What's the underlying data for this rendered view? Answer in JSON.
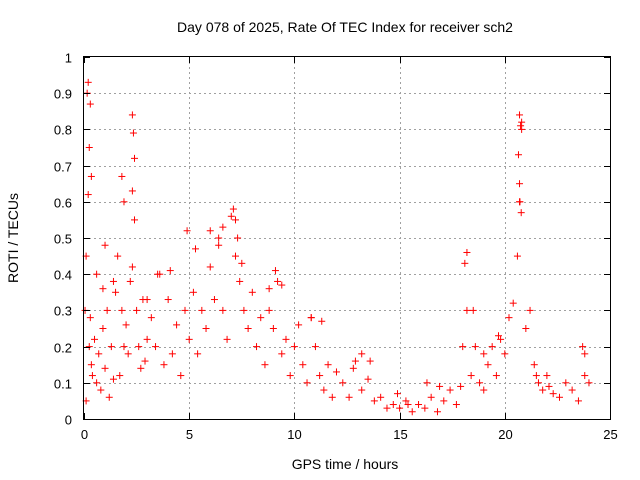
{
  "chart_data": {
    "type": "scatter",
    "title": "Day 078 of 2025, Rate Of TEC Index for receiver sch2",
    "xlabel": "GPS time / hours",
    "ylabel": "ROTI / TECUs",
    "xlim": [
      0,
      25
    ],
    "ylim": [
      0,
      1
    ],
    "xticks": [
      "0",
      "5",
      "10",
      "15",
      "20",
      "25"
    ],
    "yticks": [
      "0",
      "0.1",
      "0.2",
      "0.3",
      "0.4",
      "0.5",
      "0.6",
      "0.7",
      "0.8",
      "0.9",
      "1"
    ],
    "grid": true,
    "marker": "+",
    "color": "#ff0000",
    "series": [
      {
        "name": "ROTI",
        "x": [
          0.05,
          0.1,
          0.15,
          0.2,
          0.25,
          0.3,
          0.35,
          0.4,
          0.5,
          0.6,
          0.7,
          0.8,
          0.9,
          1.0,
          1.1,
          1.2,
          1.3,
          1.4,
          1.5,
          1.6,
          1.7,
          1.8,
          1.9,
          2.0,
          2.1,
          2.2,
          2.3,
          2.4,
          2.5,
          2.6,
          2.7,
          2.8,
          2.9,
          3.0,
          3.2,
          3.4,
          3.6,
          3.8,
          4.0,
          4.2,
          4.4,
          4.6,
          4.8,
          5.0,
          5.2,
          5.4,
          5.6,
          5.8,
          6.0,
          6.2,
          6.4,
          6.6,
          6.8,
          7.0,
          7.2,
          7.4,
          7.6,
          7.8,
          8.0,
          8.2,
          8.4,
          8.6,
          8.8,
          9.0,
          9.2,
          9.4,
          9.6,
          9.8,
          10.0,
          10.2,
          10.4,
          10.6,
          10.8,
          11.0,
          11.2,
          11.4,
          11.6,
          11.8,
          12.0,
          12.3,
          12.6,
          12.9,
          13.2,
          13.5,
          13.8,
          14.1,
          14.4,
          14.7,
          15.0,
          15.3,
          15.6,
          15.9,
          16.2,
          16.5,
          16.8,
          17.1,
          17.4,
          17.7,
          18.0,
          18.2,
          18.4,
          18.6,
          18.8,
          19.0,
          19.2,
          19.4,
          19.6,
          19.8,
          20.0,
          20.2,
          20.4,
          20.6,
          20.7,
          20.8,
          21.0,
          21.2,
          21.4,
          21.6,
          21.8,
          22.0,
          22.3,
          22.6,
          22.9,
          23.2,
          23.5,
          23.8,
          24.0,
          0.2,
          0.3,
          0.25,
          0.35,
          1.8,
          1.9,
          2.3,
          2.35,
          2.4,
          2.3,
          6.0,
          6.4,
          6.6,
          7.1,
          7.2,
          7.3,
          7.5,
          8.8,
          9.1,
          9.4,
          4.9,
          5.3,
          18.2,
          18.1,
          20.7,
          20.75,
          20.8,
          20.65,
          20.7,
          20.72,
          20.78,
          23.7,
          23.8,
          3.5,
          4.1,
          10.8,
          13.2,
          13.6,
          3.0,
          1.0,
          1.4,
          0.1,
          0.6,
          0.9,
          11.3,
          12.8,
          21.5,
          22.1,
          19.0,
          19.7,
          17.9,
          18.5,
          16.3,
          14.9,
          15.4,
          16.9
        ],
        "y": [
          0.3,
          0.45,
          0.9,
          0.62,
          0.2,
          0.28,
          0.15,
          0.12,
          0.22,
          0.1,
          0.18,
          0.08,
          0.25,
          0.14,
          0.3,
          0.06,
          0.2,
          0.11,
          0.35,
          0.45,
          0.12,
          0.3,
          0.2,
          0.26,
          0.18,
          0.38,
          0.42,
          0.55,
          0.3,
          0.2,
          0.14,
          0.33,
          0.16,
          0.22,
          0.28,
          0.2,
          0.4,
          0.15,
          0.33,
          0.18,
          0.26,
          0.12,
          0.3,
          0.22,
          0.35,
          0.18,
          0.3,
          0.25,
          0.42,
          0.33,
          0.48,
          0.3,
          0.22,
          0.56,
          0.45,
          0.38,
          0.3,
          0.25,
          0.35,
          0.2,
          0.28,
          0.15,
          0.3,
          0.25,
          0.38,
          0.18,
          0.22,
          0.12,
          0.2,
          0.26,
          0.15,
          0.1,
          0.28,
          0.2,
          0.12,
          0.08,
          0.15,
          0.06,
          0.13,
          0.1,
          0.06,
          0.16,
          0.08,
          0.11,
          0.05,
          0.06,
          0.03,
          0.04,
          0.03,
          0.05,
          0.02,
          0.04,
          0.03,
          0.06,
          0.02,
          0.05,
          0.08,
          0.04,
          0.2,
          0.3,
          0.12,
          0.2,
          0.1,
          0.08,
          0.15,
          0.2,
          0.12,
          0.22,
          0.18,
          0.28,
          0.32,
          0.45,
          0.6,
          0.82,
          0.25,
          0.3,
          0.15,
          0.1,
          0.08,
          0.12,
          0.07,
          0.06,
          0.1,
          0.08,
          0.05,
          0.12,
          0.1,
          0.93,
          0.87,
          0.75,
          0.67,
          0.67,
          0.6,
          0.84,
          0.79,
          0.72,
          0.63,
          0.52,
          0.5,
          0.53,
          0.58,
          0.55,
          0.5,
          0.43,
          0.36,
          0.41,
          0.37,
          0.52,
          0.47,
          0.46,
          0.43,
          0.84,
          0.81,
          0.8,
          0.73,
          0.65,
          0.6,
          0.57,
          0.2,
          0.18,
          0.4,
          0.41,
          0.28,
          0.18,
          0.16,
          0.33,
          0.48,
          0.38,
          0.05,
          0.4,
          0.36,
          0.27,
          0.14,
          0.12,
          0.09,
          0.18,
          0.23,
          0.09,
          0.3,
          0.1,
          0.07,
          0.04,
          0.09
        ]
      }
    ]
  }
}
